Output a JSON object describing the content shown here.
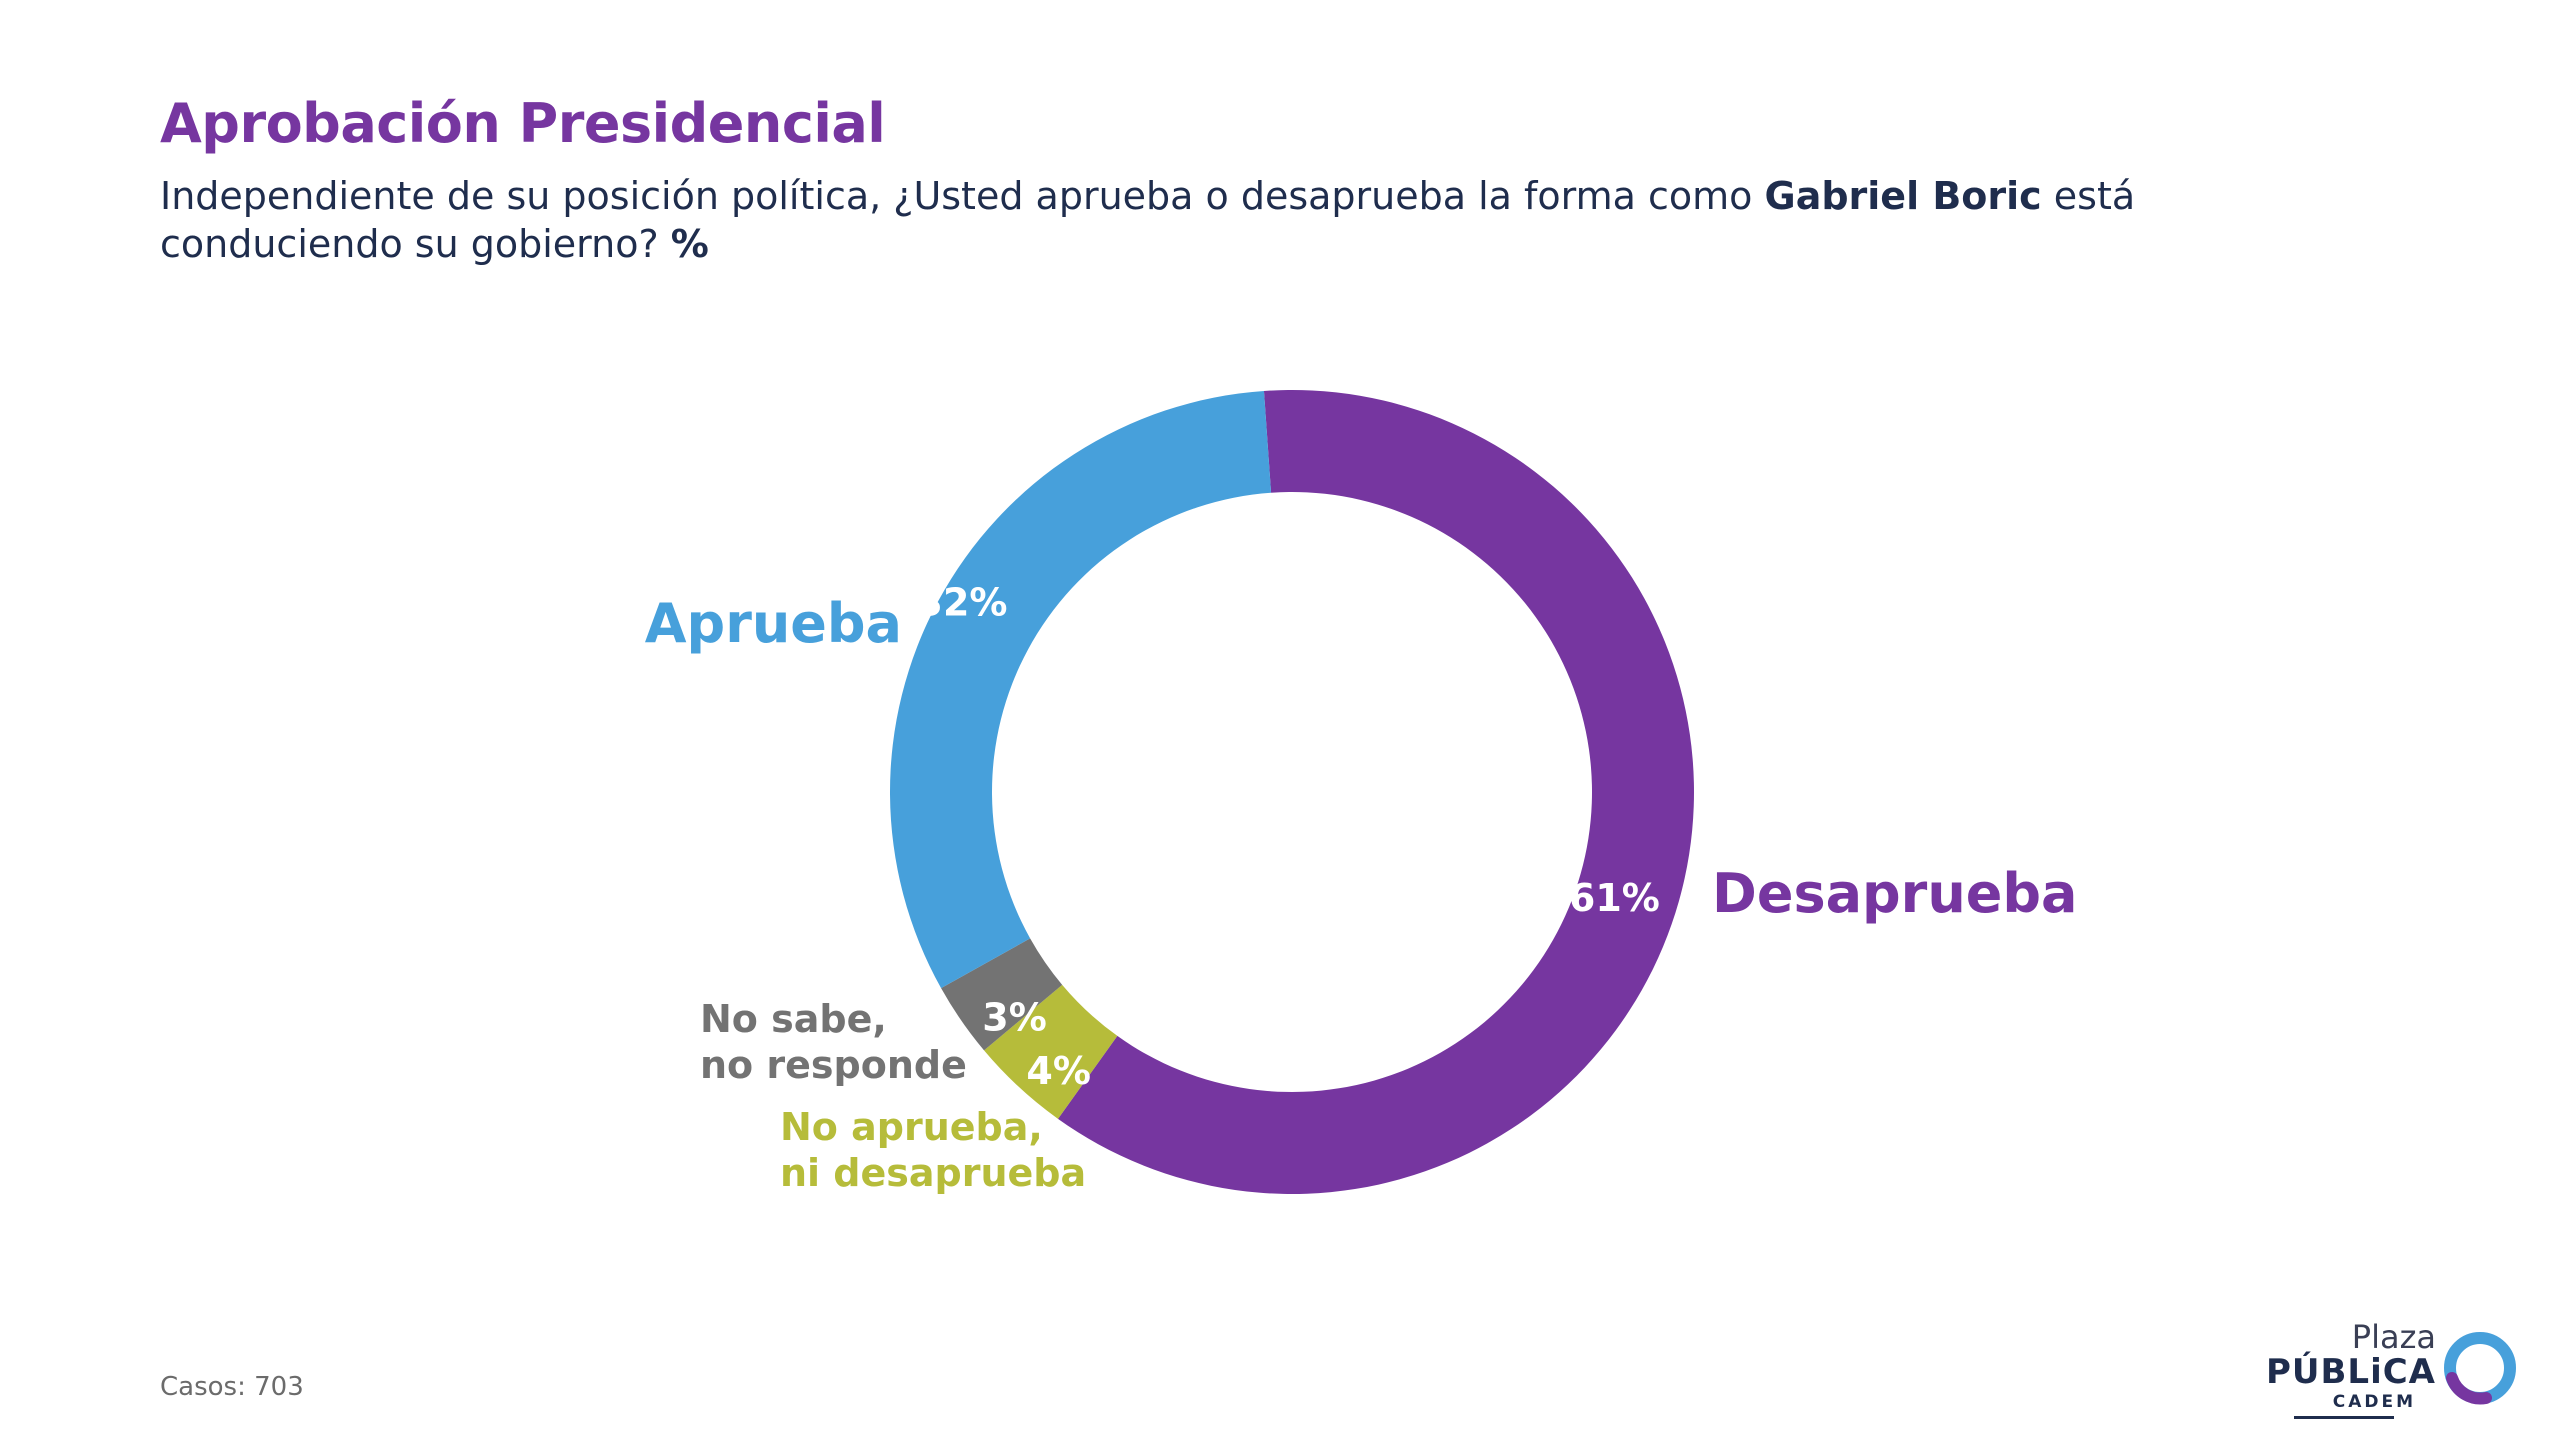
{
  "header": {
    "title": "Aprobación Presidencial",
    "subtitle_part1": "Independiente de su posición política, ¿Usted aprueba o desaprueba la forma como ",
    "subtitle_bold": "Gabriel Boric",
    "subtitle_part2": " está conduciendo su gobierno? ",
    "subtitle_unit": "%"
  },
  "chart_data": {
    "type": "pie",
    "variant": "donut",
    "unit": "%",
    "slices": [
      {
        "label_lines": [
          "Desaprueba"
        ],
        "value": 61,
        "value_label": "61%",
        "color": "#7636a0"
      },
      {
        "label_lines": [
          "No aprueba,",
          "ni desaprueba"
        ],
        "value": 4,
        "value_label": "4%",
        "color": "#b6bc3a"
      },
      {
        "label_lines": [
          "No sabe,",
          "no responde"
        ],
        "value": 3,
        "value_label": "3%",
        "color": "#737373"
      },
      {
        "label_lines": [
          "Aprueba"
        ],
        "value": 32,
        "value_label": "32%",
        "color": "#47a0db"
      }
    ]
  },
  "footer": {
    "cases": "Casos: 703"
  },
  "logo": {
    "line1": "Plaza",
    "line2": "PÚBLiCA",
    "line3": "CADEM"
  },
  "colors": {
    "title": "#7636a0",
    "text": "#1f2d4d",
    "logo_blue": "#47a0db",
    "logo_purple": "#7636a0"
  }
}
